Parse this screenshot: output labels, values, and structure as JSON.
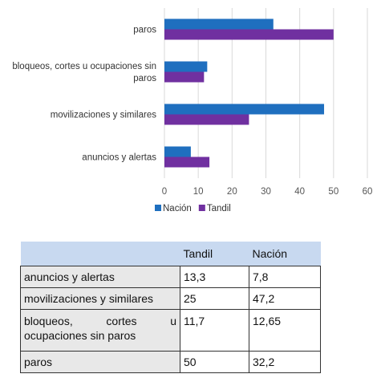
{
  "chart_data": {
    "type": "bar",
    "orientation": "horizontal",
    "categories": [
      "paros",
      "bloqueos, cortes u ocupaciones sin paros",
      "movilizaciones y similares",
      "anuncios y alertas"
    ],
    "category_lines": [
      [
        "paros"
      ],
      [
        "bloqueos, cortes u ocupaciones sin",
        "paros"
      ],
      [
        "movilizaciones y similares"
      ],
      [
        "anuncios y alertas"
      ]
    ],
    "series": [
      {
        "name": "Nación",
        "values": [
          32.2,
          12.65,
          47.2,
          7.8
        ],
        "color": "#1f6fbf"
      },
      {
        "name": "Tandil",
        "values": [
          50,
          11.7,
          25,
          13.3
        ],
        "color": "#7030a0"
      }
    ],
    "xlim": [
      0,
      60
    ],
    "xticks": [
      0,
      10,
      20,
      30,
      40,
      50,
      60
    ],
    "grid": true,
    "legend_position": "bottom"
  },
  "table": {
    "headers": [
      "",
      "Tandil",
      "Nación"
    ],
    "rows": [
      {
        "label": "anuncios y alertas",
        "tandil": "13,3",
        "nacion": "7,8"
      },
      {
        "label": "movilizaciones y similares",
        "tandil": "25",
        "nacion": "47,2"
      },
      {
        "label": "bloqueos, cortes u ocupaciones sin paros",
        "tandil": "11,7",
        "nacion": "12,65"
      },
      {
        "label": "paros",
        "tandil": "50",
        "nacion": "32,2"
      }
    ]
  }
}
